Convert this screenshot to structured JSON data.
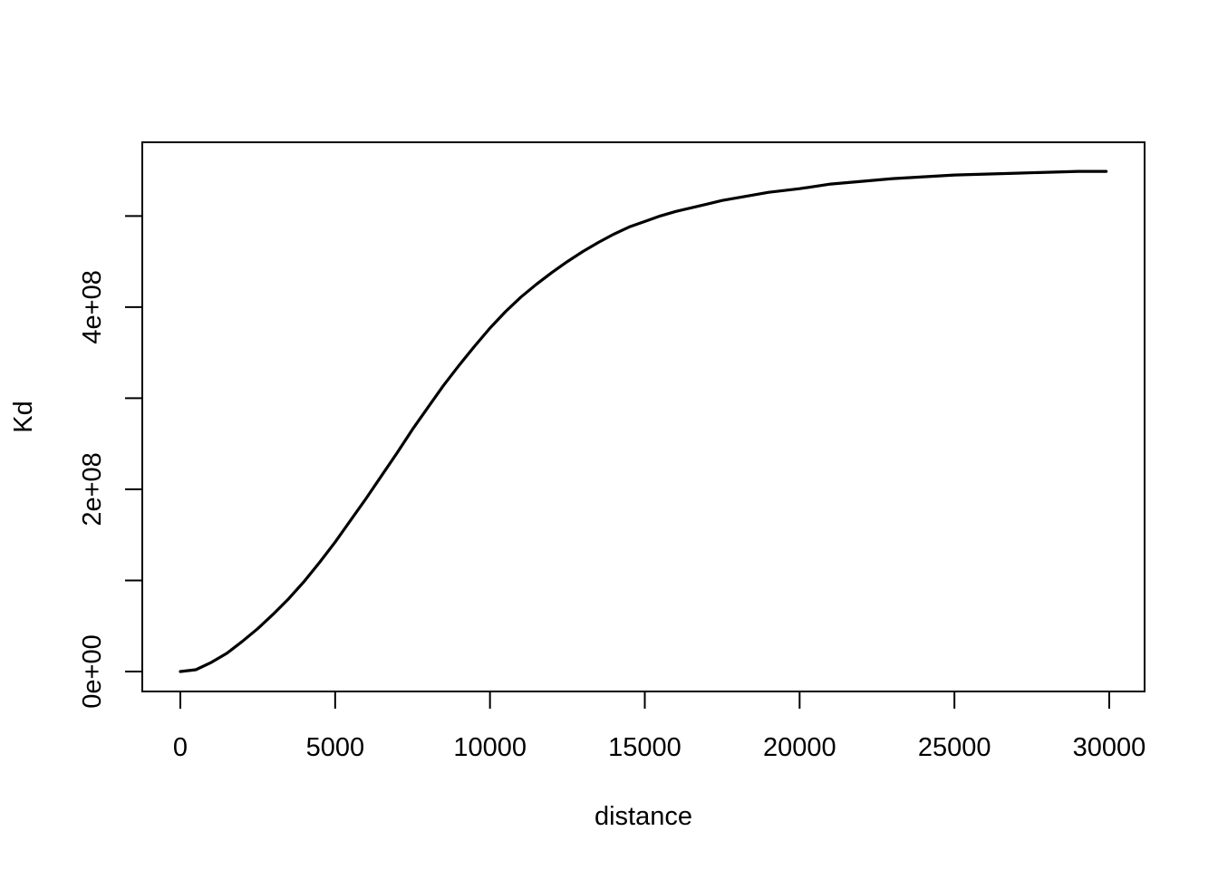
{
  "chart_data": {
    "type": "line",
    "title": "",
    "xlabel": "distance",
    "ylabel": "Kd",
    "xlim": [
      0,
      30000
    ],
    "ylim": [
      0,
      560000000
    ],
    "x_ticks": [
      0,
      5000,
      10000,
      15000,
      20000,
      25000,
      30000
    ],
    "x_tick_labels": [
      "0",
      "5000",
      "10000",
      "15000",
      "20000",
      "25000",
      "30000"
    ],
    "y_ticks": [
      0,
      100000000,
      200000000,
      300000000,
      400000000,
      500000000
    ],
    "y_tick_labels": [
      "0e+00",
      "",
      "2e+08",
      "",
      "4e+08",
      ""
    ],
    "grid": false,
    "legend": "none",
    "series": [
      {
        "color": "#000000",
        "x": [
          0,
          500,
          1000,
          1500,
          2000,
          2500,
          3000,
          3500,
          4000,
          4500,
          5000,
          5500,
          6000,
          6500,
          7000,
          7500,
          8000,
          8500,
          9000,
          9500,
          10000,
          10500,
          11000,
          11500,
          12000,
          12500,
          13000,
          13500,
          14000,
          14500,
          15000,
          15500,
          16000,
          16500,
          17000,
          17500,
          18000,
          18500,
          19000,
          19500,
          20000,
          21000,
          22000,
          23000,
          24000,
          25000,
          26000,
          27000,
          28000,
          29000,
          29900
        ],
        "y": [
          0,
          2000000,
          10000000,
          20000000,
          33000000,
          47000000,
          63000000,
          80000000,
          99000000,
          120000000,
          142000000,
          166000000,
          190000000,
          215000000,
          240000000,
          266000000,
          290000000,
          314000000,
          336000000,
          357000000,
          377000000,
          395000000,
          411000000,
          425000000,
          438000000,
          450000000,
          461000000,
          471000000,
          480000000,
          488000000,
          494000000,
          500000000,
          505000000,
          509000000,
          513000000,
          517000000,
          520000000,
          523000000,
          526000000,
          528000000,
          530000000,
          535000000,
          538000000,
          541000000,
          543000000,
          545000000,
          546000000,
          547000000,
          548000000,
          549000000,
          549000000
        ]
      }
    ]
  }
}
